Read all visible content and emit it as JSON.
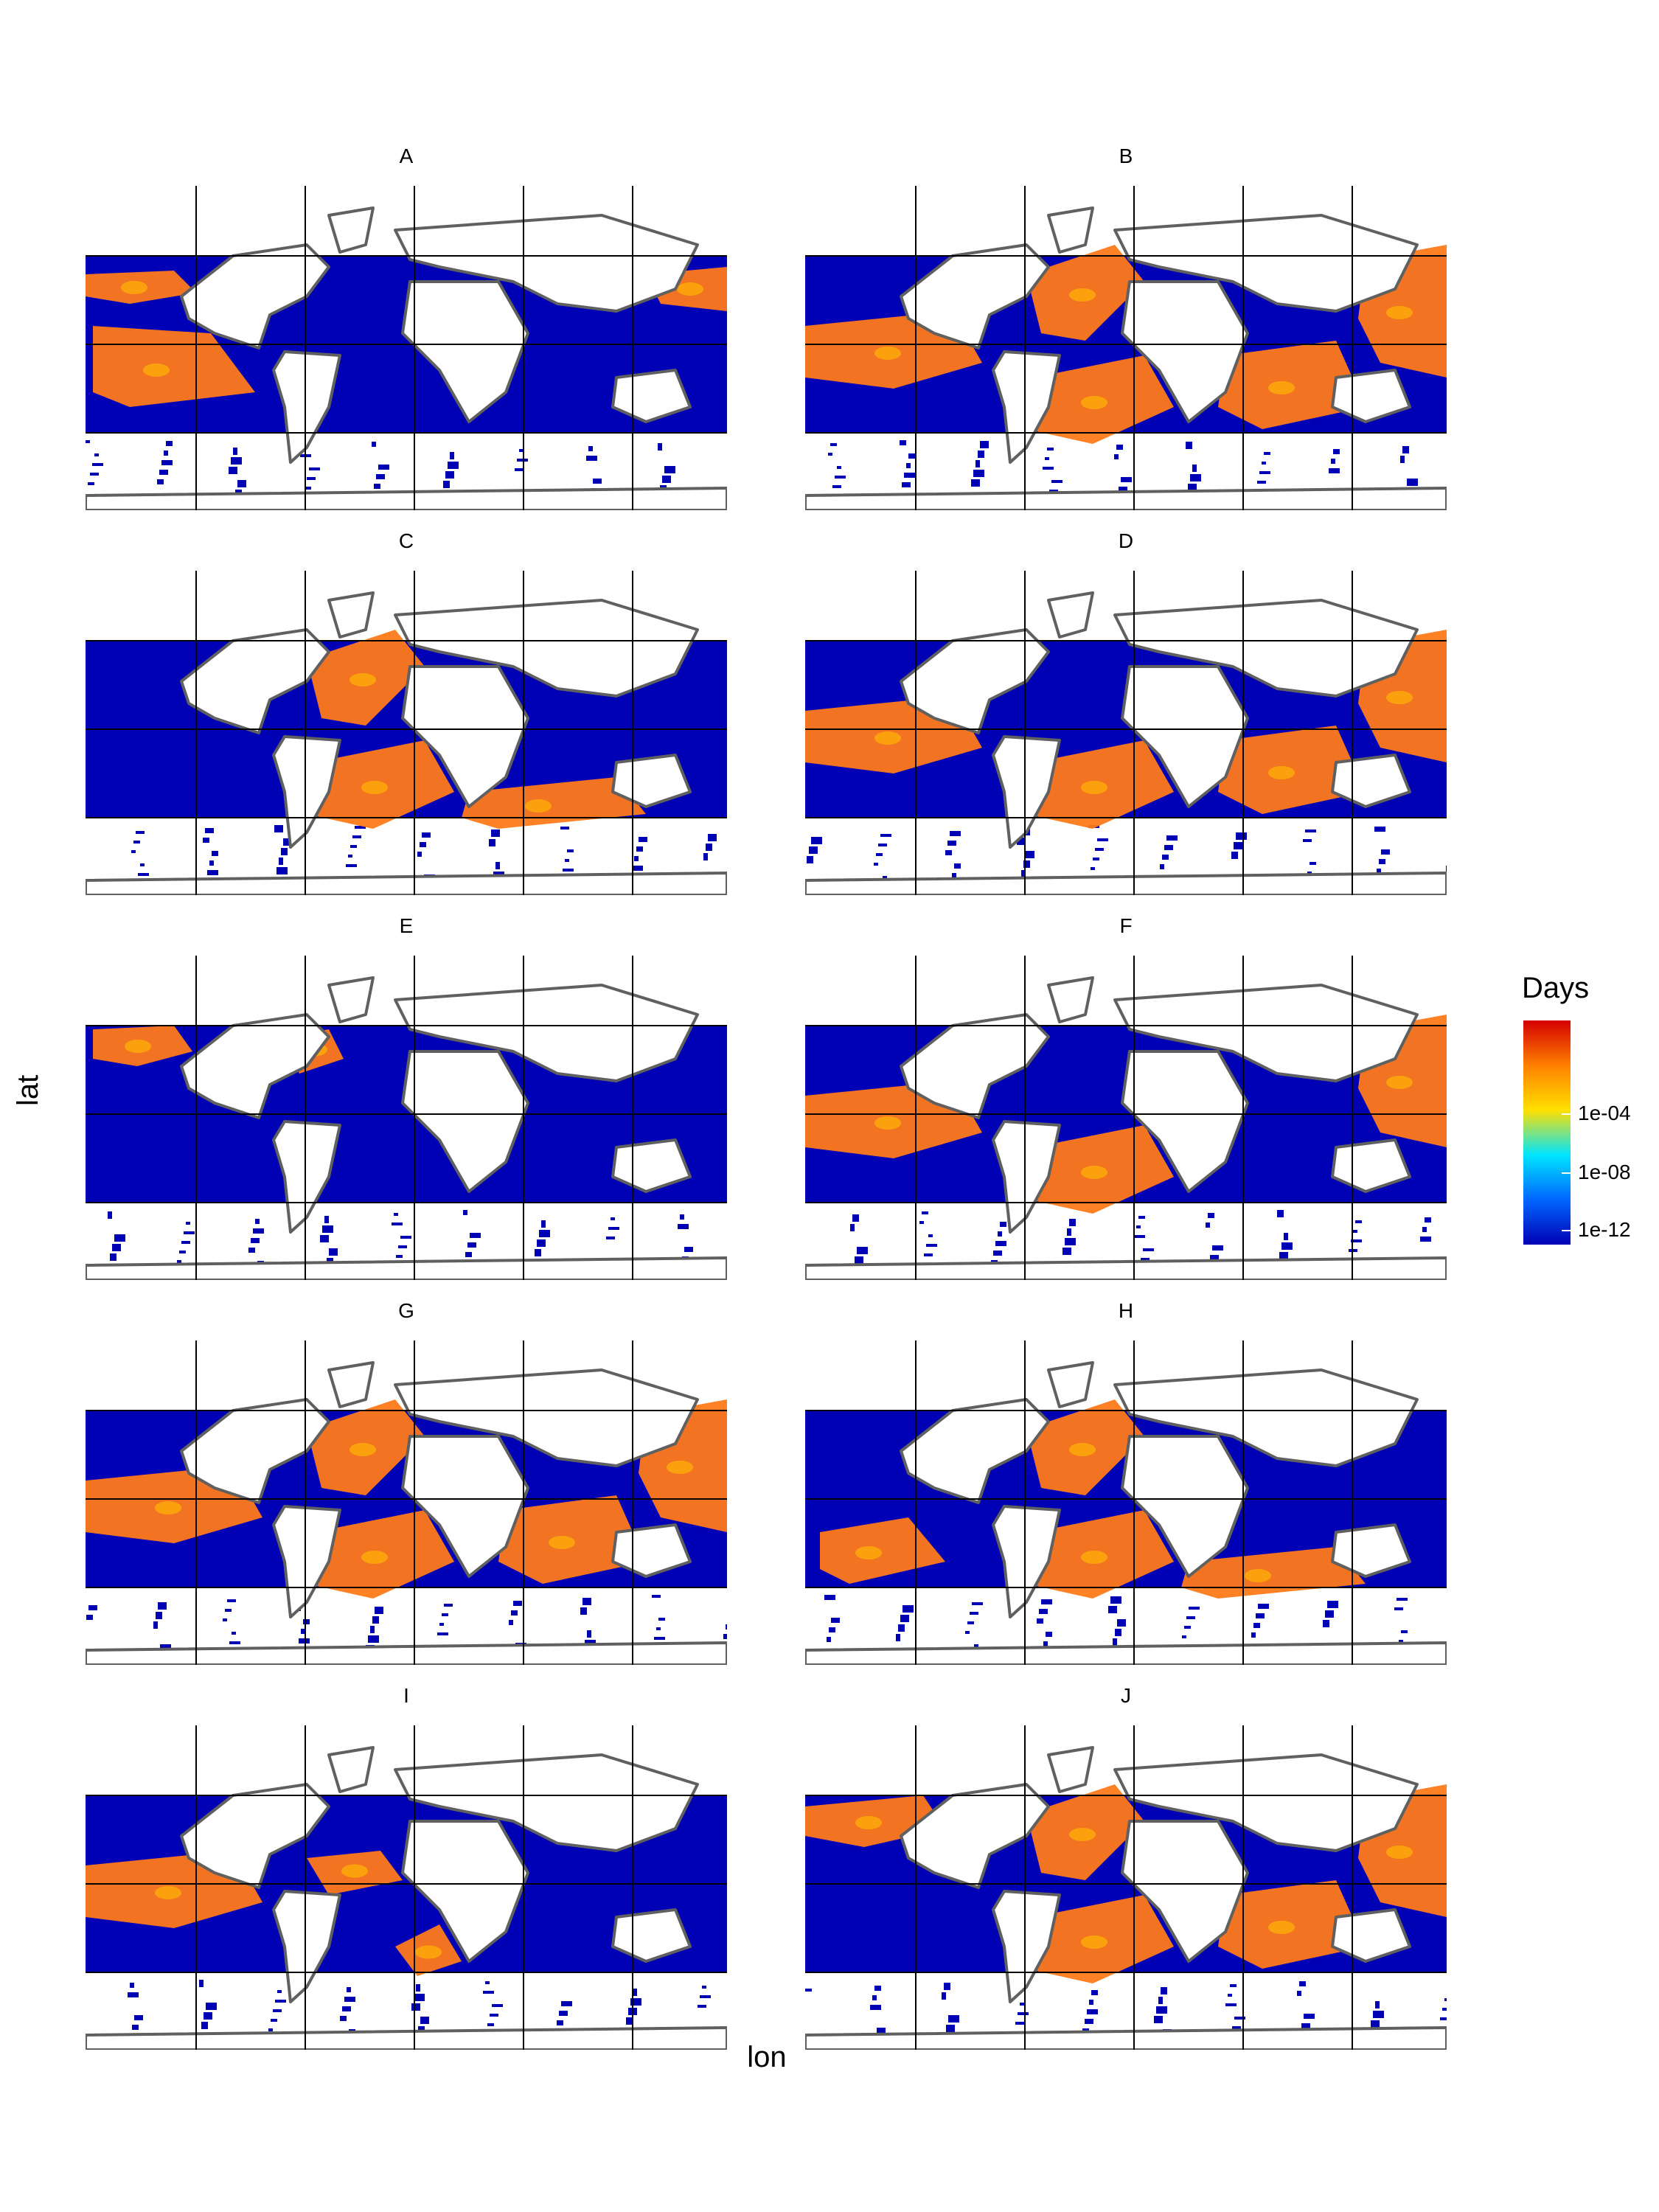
{
  "chart_data": {
    "type": "heatmap",
    "xlabel": "lon",
    "ylabel": "lat",
    "legend": {
      "title": "Days",
      "placement": "right",
      "scale": "log",
      "ticks": [
        "1e-04",
        "1e-08",
        "1e-12"
      ],
      "colors": [
        "#0000b4",
        "#0066ff",
        "#00e5ff",
        "#ffe000",
        "#ff8000",
        "#d40000"
      ]
    },
    "grid": true,
    "colors": {
      "ocean_low": "#0000b4",
      "ocean_high": "#ff7a1a",
      "ocean_mid": "#ffc000",
      "coastline": "#606060",
      "gridline": "#000000"
    },
    "panels": [
      {
        "label": "A",
        "warm_regions": [
          "north-pacific-west",
          "east-pacific-central",
          "west-pacific-north"
        ]
      },
      {
        "label": "B",
        "warm_regions": [
          "central-pacific",
          "north-atlantic",
          "south-atlantic",
          "indian-ocean",
          "west-pacific"
        ]
      },
      {
        "label": "C",
        "warm_regions": [
          "north-atlantic",
          "south-atlantic",
          "south-indian"
        ]
      },
      {
        "label": "D",
        "warm_regions": [
          "central-pacific",
          "south-atlantic",
          "indian-ocean",
          "west-pacific"
        ]
      },
      {
        "label": "E",
        "warm_regions": [
          "north-pacific-east",
          "north-atlantic-west"
        ]
      },
      {
        "label": "F",
        "warm_regions": [
          "central-pacific",
          "south-atlantic",
          "west-pacific"
        ]
      },
      {
        "label": "G",
        "warm_regions": [
          "central-pacific",
          "north-atlantic",
          "south-atlantic",
          "indian-ocean",
          "west-pacific"
        ]
      },
      {
        "label": "H",
        "warm_regions": [
          "north-atlantic",
          "south-atlantic",
          "south-indian",
          "east-pacific"
        ]
      },
      {
        "label": "I",
        "warm_regions": [
          "central-pacific",
          "caribbean",
          "south-atlantic-coast"
        ]
      },
      {
        "label": "J",
        "warm_regions": [
          "north-pacific",
          "north-atlantic",
          "south-atlantic",
          "indian-ocean",
          "west-pacific"
        ]
      }
    ]
  }
}
